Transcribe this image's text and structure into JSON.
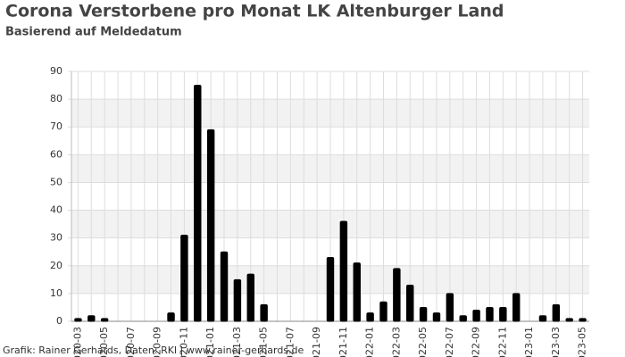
{
  "chart_data": {
    "type": "bar",
    "title": "Corona Verstorbene pro Monat LK Altenburger Land",
    "subtitle": "Basierend auf Meldedatum",
    "footer": "Grafik: Rainer Gerhards, Daten: RKI | www.rainer-gerhards.de",
    "categories": [
      "2020-03",
      null,
      "2020-05",
      null,
      "2020-07",
      null,
      "2020-09",
      null,
      "2020-11",
      null,
      "2021-01",
      null,
      "2021-03",
      null,
      "2021-05",
      null,
      "2021-07",
      null,
      "2021-09",
      null,
      "2021-11",
      null,
      "2022-01",
      null,
      "2022-03",
      null,
      "2022-05",
      null,
      "2022-07",
      null,
      "2022-09",
      null,
      "2022-11",
      null,
      "2023-01",
      null,
      "2023-03",
      null,
      "2023-05"
    ],
    "values": [
      1,
      2,
      1,
      0,
      0,
      0,
      0,
      3,
      31,
      85,
      69,
      25,
      15,
      17,
      6,
      0,
      0,
      0,
      0,
      23,
      36,
      21,
      3,
      7,
      19,
      13,
      5,
      3,
      10,
      2,
      4,
      5,
      5,
      10,
      0,
      2,
      6,
      1,
      1
    ],
    "color": "#000000",
    "ylim": [
      0,
      90
    ],
    "yticks": [
      0,
      10,
      20,
      30,
      40,
      50,
      60,
      70,
      80,
      90
    ],
    "grid": true
  }
}
